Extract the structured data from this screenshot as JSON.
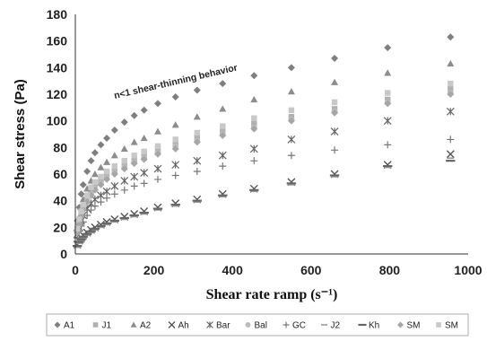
{
  "chart_data": {
    "type": "scatter",
    "ylabel": "Shear stress (Pa)",
    "xlabel": "Shear rate ramp (s⁻¹)",
    "annotation": "n<1 shear-thinning behavior",
    "xlim": [
      0,
      1000
    ],
    "ylim": [
      0,
      180
    ],
    "xticks": [
      0,
      200,
      400,
      600,
      800,
      1000
    ],
    "yticks": [
      0,
      20,
      40,
      60,
      80,
      100,
      120,
      140,
      160,
      180
    ],
    "grid": false,
    "legend_position": "bottom",
    "series": [
      {
        "name": "A1",
        "marker": "diamond",
        "color": "#7f7f7f",
        "x": [
          5,
          10,
          15,
          20,
          30,
          40,
          50,
          65,
          80,
          100,
          125,
          150,
          175,
          210,
          255,
          310,
          375,
          455,
          550,
          660,
          795,
          955
        ],
        "y": [
          25,
          35,
          45,
          52,
          62,
          70,
          76,
          82,
          87,
          93,
          99,
          104,
          108,
          113,
          118,
          123,
          128,
          134,
          140,
          147,
          155,
          163
        ]
      },
      {
        "name": "J1",
        "marker": "square",
        "color": "#b0b0b0",
        "x": [
          5,
          10,
          15,
          20,
          30,
          40,
          50,
          65,
          80,
          100,
          125,
          150,
          175,
          210,
          255,
          310,
          375,
          455,
          550,
          660,
          795,
          955
        ],
        "y": [
          18,
          25,
          31,
          36,
          43,
          48,
          52,
          56,
          60,
          64,
          68,
          72,
          75,
          79,
          84,
          88,
          93,
          98,
          103,
          109,
          116,
          124
        ]
      },
      {
        "name": "A2",
        "marker": "triangle",
        "color": "#8c8c8c",
        "x": [
          5,
          10,
          15,
          20,
          30,
          40,
          50,
          65,
          80,
          100,
          125,
          150,
          175,
          210,
          255,
          310,
          375,
          455,
          550,
          660,
          795,
          955
        ],
        "y": [
          20,
          28,
          35,
          41,
          49,
          55,
          60,
          65,
          69,
          74,
          79,
          84,
          87,
          92,
          97,
          103,
          109,
          116,
          122,
          129,
          136,
          143
        ]
      },
      {
        "name": "Ah",
        "marker": "x",
        "color": "#555555",
        "x": [
          5,
          10,
          15,
          20,
          30,
          40,
          50,
          65,
          80,
          100,
          125,
          150,
          175,
          210,
          255,
          310,
          375,
          455,
          550,
          660,
          795,
          955
        ],
        "y": [
          7,
          10,
          12,
          14,
          16,
          18,
          20,
          22,
          24,
          26,
          28,
          30,
          32,
          35,
          38,
          41,
          45,
          49,
          54,
          60,
          67,
          75
        ]
      },
      {
        "name": "Bar",
        "marker": "asterisk",
        "color": "#666666",
        "x": [
          5,
          10,
          15,
          20,
          30,
          40,
          50,
          65,
          80,
          100,
          125,
          150,
          175,
          210,
          255,
          310,
          375,
          455,
          550,
          660,
          795,
          955
        ],
        "y": [
          15,
          20,
          25,
          29,
          34,
          38,
          41,
          44,
          47,
          51,
          55,
          58,
          61,
          64,
          67,
          70,
          74,
          79,
          86,
          92,
          100,
          107
        ]
      },
      {
        "name": "Bal",
        "marker": "circle",
        "color": "#bdbdbd",
        "x": [
          5,
          10,
          15,
          20,
          30,
          40,
          50,
          65,
          80,
          100,
          125,
          150,
          175,
          210,
          255,
          310,
          375,
          455,
          550,
          660,
          795,
          955
        ],
        "y": [
          17,
          23,
          29,
          34,
          40,
          45,
          49,
          53,
          57,
          61,
          65,
          69,
          72,
          76,
          81,
          85,
          90,
          95,
          101,
          107,
          114,
          121
        ]
      },
      {
        "name": "GC",
        "marker": "plus",
        "color": "#777777",
        "x": [
          5,
          10,
          15,
          20,
          30,
          40,
          50,
          65,
          80,
          100,
          125,
          150,
          175,
          210,
          255,
          310,
          375,
          455,
          550,
          660,
          795,
          955
        ],
        "y": [
          12,
          17,
          21,
          24,
          29,
          33,
          36,
          39,
          42,
          45,
          48,
          51,
          53,
          56,
          59,
          62,
          66,
          70,
          74,
          78,
          82,
          86
        ]
      },
      {
        "name": "J2",
        "marker": "dash",
        "color": "#999999",
        "x": [
          5,
          10,
          15,
          20,
          30,
          40,
          50,
          65,
          80,
          100,
          125,
          150,
          175,
          210,
          255,
          310,
          375,
          455,
          550,
          660,
          795,
          955
        ],
        "y": [
          5,
          8,
          10,
          12,
          14,
          16,
          18,
          20,
          22,
          24,
          26,
          28,
          30,
          33,
          36,
          39,
          43,
          47,
          52,
          58,
          65,
          72
        ]
      },
      {
        "name": "Kh",
        "marker": "longdash",
        "color": "#666666",
        "x": [
          5,
          10,
          15,
          20,
          30,
          40,
          50,
          65,
          80,
          100,
          125,
          150,
          175,
          210,
          255,
          310,
          375,
          455,
          550,
          660,
          795,
          955
        ],
        "y": [
          6,
          9,
          11,
          13,
          15,
          17,
          19,
          21,
          23,
          25,
          27,
          29,
          31,
          34,
          37,
          40,
          44,
          48,
          53,
          59,
          66,
          70
        ]
      },
      {
        "name": "SM",
        "marker": "diamond",
        "color": "#a6a6a6",
        "x": [
          5,
          10,
          15,
          20,
          30,
          40,
          50,
          65,
          80,
          100,
          125,
          150,
          175,
          210,
          255,
          310,
          375,
          455,
          550,
          660,
          795,
          955
        ],
        "y": [
          16,
          22,
          28,
          33,
          39,
          44,
          48,
          52,
          56,
          60,
          64,
          68,
          71,
          75,
          79,
          84,
          89,
          94,
          100,
          106,
          113,
          120
        ]
      },
      {
        "name": "SM",
        "marker": "square",
        "color": "#c8c8c8",
        "x": [
          5,
          10,
          15,
          20,
          30,
          40,
          50,
          65,
          80,
          100,
          125,
          150,
          175,
          210,
          255,
          310,
          375,
          455,
          550,
          660,
          795,
          955
        ],
        "y": [
          19,
          26,
          32,
          37,
          44,
          50,
          54,
          58,
          62,
          66,
          70,
          74,
          77,
          81,
          86,
          91,
          96,
          102,
          108,
          114,
          121,
          128
        ]
      }
    ]
  }
}
